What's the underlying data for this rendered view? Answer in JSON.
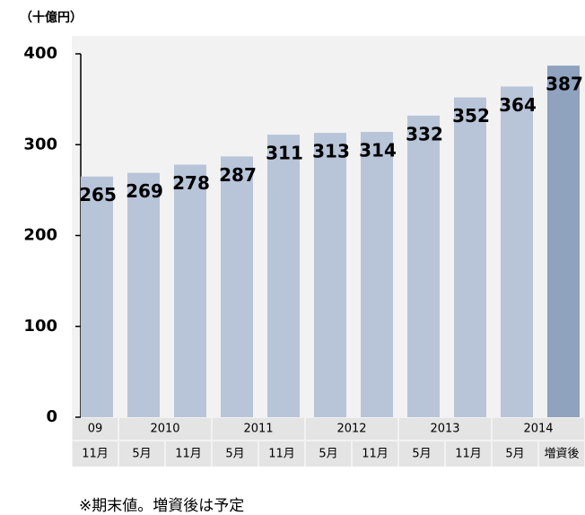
{
  "chart_data": {
    "type": "bar",
    "unit_label": "（十億円）",
    "categories": [
      "11月",
      "5月",
      "11月",
      "5月",
      "11月",
      "5月",
      "11月",
      "5月",
      "11月",
      "5月",
      "増資後"
    ],
    "category_groups": [
      "09",
      "2010",
      null,
      "2011",
      null,
      "2012",
      null,
      "2013",
      null,
      "2014",
      null
    ],
    "values": [
      265,
      269,
      278,
      287,
      311,
      313,
      314,
      332,
      352,
      364,
      387
    ],
    "colors": [
      "#b8c4d8",
      "#b8c4d8",
      "#b8c4d8",
      "#b8c4d8",
      "#b8c4d8",
      "#b8c4d8",
      "#b8c4d8",
      "#b8c4d8",
      "#b8c4d8",
      "#b8c4d8",
      "#8fa2be"
    ],
    "ylim": [
      0,
      400
    ],
    "yticks": [
      0,
      100,
      200,
      300,
      400
    ],
    "footnote": "※期末値。増資後は予定"
  }
}
